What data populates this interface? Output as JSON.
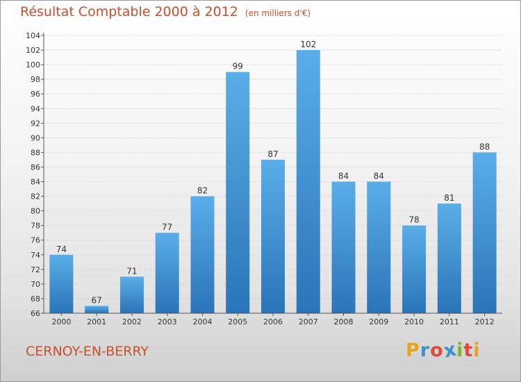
{
  "chart_data": {
    "type": "bar",
    "title": "Résultat Comptable 2000 à 2012",
    "subtitle": "(en milliers d'€)",
    "categories": [
      "2000",
      "2001",
      "2002",
      "2003",
      "2004",
      "2005",
      "2006",
      "2007",
      "2008",
      "2009",
      "2010",
      "2011",
      "2012"
    ],
    "values": [
      74,
      67,
      71,
      77,
      82,
      99,
      87,
      102,
      84,
      84,
      78,
      81,
      88
    ],
    "ylim": [
      66,
      104
    ],
    "yticks": [
      66,
      68,
      70,
      72,
      74,
      76,
      78,
      80,
      82,
      84,
      86,
      88,
      90,
      92,
      94,
      96,
      98,
      100,
      102,
      104
    ],
    "grid": true,
    "bar_color": "#3a8fd6"
  },
  "place_name": "CERNOY-EN-BERRY",
  "logo": {
    "letters": [
      "P",
      "r",
      "o",
      "x",
      "i",
      "t",
      "i"
    ],
    "colors": [
      "#e8a21c",
      "#3b8fd3",
      "#e04a3a",
      "#3b8fd3",
      "#7ab829",
      "#e04a3a",
      "#e8a21c"
    ]
  }
}
